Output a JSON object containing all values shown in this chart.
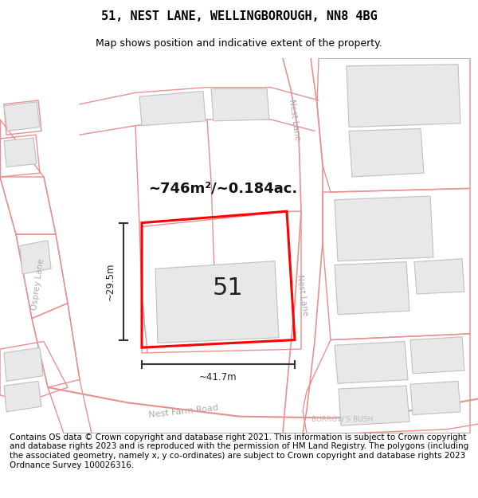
{
  "title": "51, NEST LANE, WELLINGBOROUGH, NN8 4BG",
  "subtitle": "Map shows position and indicative extent of the property.",
  "footer": "Contains OS data © Crown copyright and database right 2021. This information is subject to Crown copyright and database rights 2023 and is reproduced with the permission of HM Land Registry. The polygons (including the associated geometry, namely x, y co-ordinates) are subject to Crown copyright and database rights 2023 Ordnance Survey 100026316.",
  "map_bg": "#ffffff",
  "road_line_color": "#e89090",
  "building_color": "#e8e8e8",
  "building_edge": "#c8c8c8",
  "plot_color": "#ff0000",
  "label_51": "51",
  "area_label": "~746m²/~0.184ac.",
  "width_label": "~41.7m",
  "height_label": "~29.5m",
  "title_fontsize": 11,
  "subtitle_fontsize": 9,
  "footer_fontsize": 7.5
}
